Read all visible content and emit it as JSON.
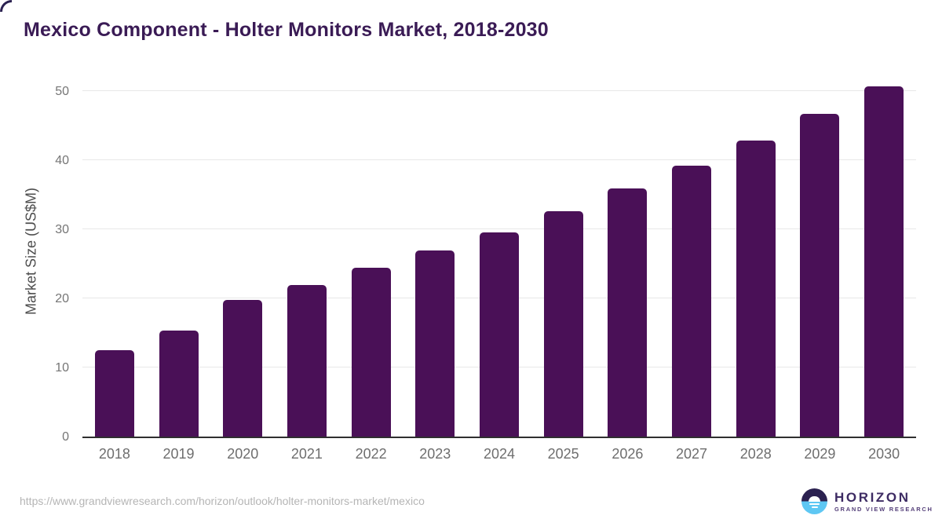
{
  "chart_data": {
    "type": "bar",
    "title": "Mexico Component - Holter Monitors Market, 2018-2030",
    "categories": [
      "2018",
      "2019",
      "2020",
      "2021",
      "2022",
      "2023",
      "2024",
      "2025",
      "2026",
      "2027",
      "2028",
      "2029",
      "2030"
    ],
    "values": [
      12.5,
      15.3,
      19.8,
      21.9,
      24.4,
      26.9,
      29.6,
      32.6,
      35.9,
      39.2,
      42.8,
      46.7,
      50.7
    ],
    "xlabel": "",
    "ylabel": "Market Size (US$M)",
    "yticks": [
      0,
      10,
      20,
      30,
      40,
      50
    ],
    "ylim": [
      0,
      52.5
    ],
    "grid": true,
    "legend": "none",
    "bar_color": "#4a1057"
  },
  "footer": {
    "source_url": "https://www.grandviewresearch.com/horizon/outlook/holter-monitors-market/mexico",
    "logo": {
      "name": "HORIZON",
      "tagline": "GRAND VIEW RESEARCH"
    }
  },
  "colors": {
    "title": "#3a1b55",
    "bar": "#4a1057",
    "axis-line": "#2f2f2f",
    "gridline": "#e8e8e8",
    "tick": "#757575",
    "xtick": "#6e6e6e",
    "axis-title": "#4d4d4d",
    "url": "#b5b5b5",
    "logo-dark": "#2b2150",
    "logo-blue": "#5ec7f3",
    "logo-text": "#3d2b63",
    "logo-tagline": "#55407a"
  }
}
